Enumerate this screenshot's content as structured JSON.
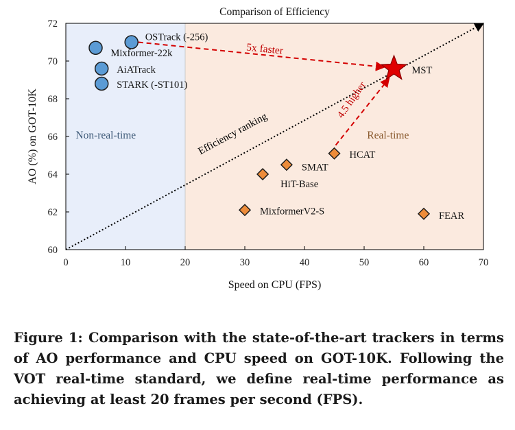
{
  "chart_data": {
    "type": "scatter",
    "title": "Comparison of Efficiency",
    "xlabel": "Speed on CPU (FPS)",
    "ylabel": "AO (%) on GOT-10K",
    "xlim": [
      0,
      70
    ],
    "ylim": [
      60,
      72
    ],
    "xticks": [
      0,
      10,
      20,
      30,
      40,
      50,
      60,
      70
    ],
    "yticks": [
      60,
      62,
      64,
      66,
      68,
      70,
      72
    ],
    "grid": false,
    "regions": [
      {
        "label": "Non-real-time",
        "x_range": [
          0,
          20
        ],
        "color": "#e8eefa"
      },
      {
        "label": "Real-time",
        "x_range": [
          20,
          70
        ],
        "color": "#fbeadf"
      }
    ],
    "series": [
      {
        "name": "Non-real-time trackers",
        "marker": "circle",
        "color": "#5b9bd5",
        "points": [
          {
            "label": "OSTrack (-256)",
            "x": 11,
            "y": 71.0
          },
          {
            "label": "Mixformer-22k",
            "x": 5,
            "y": 70.7
          },
          {
            "label": "AiATrack",
            "x": 6,
            "y": 69.6
          },
          {
            "label": "STARK (-ST101)",
            "x": 6,
            "y": 68.8
          }
        ]
      },
      {
        "name": "Real-time trackers",
        "marker": "diamond",
        "color": "#ed8c3a",
        "points": [
          {
            "label": "HCAT",
            "x": 45,
            "y": 65.1
          },
          {
            "label": "SMAT",
            "x": 37,
            "y": 64.5
          },
          {
            "label": "HiT-Base",
            "x": 33,
            "y": 64.0
          },
          {
            "label": "MixformerV2-S",
            "x": 30,
            "y": 62.1
          },
          {
            "label": "FEAR",
            "x": 60,
            "y": 61.9
          }
        ]
      },
      {
        "name": "MST",
        "marker": "star",
        "color": "#e00000",
        "points": [
          {
            "label": "MST",
            "x": 55,
            "y": 69.6
          }
        ]
      }
    ],
    "annotations": [
      {
        "text": "5x faster",
        "color": "#c00000"
      },
      {
        "text": "4.5 higher",
        "color": "#c00000"
      },
      {
        "text": "Efficiency ranking",
        "color": "#000000"
      }
    ],
    "arrows": [
      {
        "name": "efficiency-ranking",
        "from": [
          0,
          60
        ],
        "to": [
          70,
          72
        ]
      },
      {
        "name": "5x-faster",
        "from": [
          11,
          71.0
        ],
        "to": [
          55,
          69.6
        ]
      },
      {
        "name": "4.5-higher",
        "from": [
          45,
          65.1
        ],
        "to": [
          55,
          69.6
        ]
      }
    ]
  },
  "caption": "Figure 1: Comparison with the state-of-the-art trackers in terms of AO performance and CPU speed on GOT-10K. Following the VOT real-time standard, we define real-time performance as achieving at least 20 frames per second (FPS)."
}
